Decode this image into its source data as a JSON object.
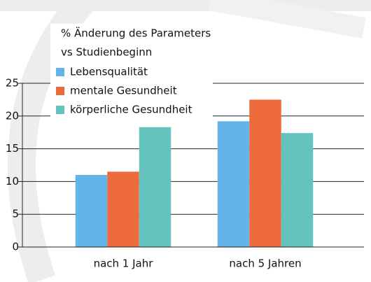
{
  "chart_data": {
    "type": "bar",
    "legend_title": [
      "% Änderung des Parameters",
      "vs Studienbeginn"
    ],
    "categories": [
      "nach 1 Jahr",
      "nach 5 Jahren"
    ],
    "series": [
      {
        "name": "Lebensqualität",
        "color": "#63b4e8",
        "values": [
          11,
          19.2
        ]
      },
      {
        "name": "mentale Gesundheit",
        "color": "#ec6a3c",
        "values": [
          11.5,
          22.5
        ]
      },
      {
        "name": "körperliche Gesundheit",
        "color": "#63c4bd",
        "values": [
          18.3,
          17.4
        ]
      }
    ],
    "ylim": [
      0,
      25
    ],
    "yticks": [
      0,
      5,
      10,
      15,
      20,
      25
    ],
    "grid": true,
    "legend": "top-left"
  }
}
